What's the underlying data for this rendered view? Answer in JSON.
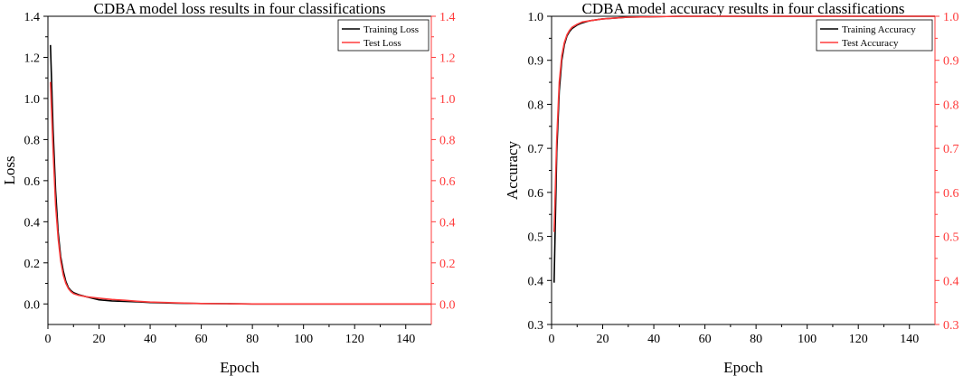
{
  "chart_data": [
    {
      "type": "line",
      "title": "CDBA model loss results in four classifications",
      "xlabel": "Epoch",
      "ylabel": "Loss",
      "y2label": "",
      "xlim": [
        0,
        150
      ],
      "ylim": [
        -0.1,
        1.4
      ],
      "y2lim": [
        -0.1,
        1.4
      ],
      "xticks": [
        "0",
        "20",
        "40",
        "60",
        "80",
        "100",
        "120",
        "140"
      ],
      "yticks": [
        "0.0",
        "0.2",
        "0.4",
        "0.6",
        "0.8",
        "1.0",
        "1.2",
        "1.4"
      ],
      "y2ticks": [
        "0.0",
        "0.2",
        "0.4",
        "0.6",
        "0.8",
        "1.0",
        "1.2",
        "1.4"
      ],
      "grid": false,
      "legend_position": "top-right",
      "colors": {
        "left_axis": "#000000",
        "right_axis": "#ff3b3b"
      },
      "series": [
        {
          "name": "Training Loss",
          "color": "#000000",
          "x": [
            1,
            2,
            3,
            4,
            5,
            6,
            7,
            8,
            9,
            10,
            12,
            15,
            20,
            25,
            30,
            35,
            40,
            50,
            60,
            70,
            80,
            100,
            120,
            150
          ],
          "values": [
            1.26,
            0.85,
            0.55,
            0.35,
            0.23,
            0.16,
            0.11,
            0.08,
            0.065,
            0.055,
            0.045,
            0.035,
            0.02,
            0.015,
            0.012,
            0.01,
            0.007,
            0.004,
            0.002,
            0.001,
            0.0,
            0.0,
            0.0,
            0.0
          ]
        },
        {
          "name": "Test Loss",
          "color": "#ff3b3b",
          "x": [
            1,
            2,
            3,
            4,
            5,
            6,
            7,
            8,
            9,
            10,
            12,
            15,
            20,
            25,
            30,
            35,
            40,
            50,
            60,
            70,
            80,
            100,
            120,
            150
          ],
          "values": [
            1.08,
            0.75,
            0.48,
            0.32,
            0.21,
            0.14,
            0.1,
            0.075,
            0.06,
            0.05,
            0.042,
            0.035,
            0.028,
            0.022,
            0.018,
            0.013,
            0.009,
            0.005,
            0.002,
            0.001,
            0.0,
            0.0,
            0.0,
            0.0
          ]
        }
      ]
    },
    {
      "type": "line",
      "title": "CDBA model accuracy results in four classifications",
      "xlabel": "Epoch",
      "ylabel": "Accuracy",
      "y2label": "",
      "xlim": [
        0,
        150
      ],
      "ylim": [
        0.3,
        1.0
      ],
      "y2lim": [
        0.3,
        1.0
      ],
      "xticks": [
        "0",
        "20",
        "40",
        "60",
        "80",
        "100",
        "120",
        "140"
      ],
      "yticks": [
        "0.3",
        "0.4",
        "0.5",
        "0.6",
        "0.7",
        "0.8",
        "0.9",
        "1.0"
      ],
      "y2ticks": [
        "0.3",
        "0.4",
        "0.5",
        "0.6",
        "0.7",
        "0.8",
        "0.9",
        "1.0"
      ],
      "grid": false,
      "legend_position": "top-right",
      "colors": {
        "left_axis": "#000000",
        "right_axis": "#ff3b3b"
      },
      "series": [
        {
          "name": "Training Accuracy",
          "color": "#000000",
          "x": [
            1,
            2,
            3,
            4,
            5,
            6,
            7,
            8,
            10,
            12,
            15,
            20,
            25,
            30,
            40,
            50,
            60,
            80,
            100,
            120,
            150
          ],
          "values": [
            0.395,
            0.69,
            0.83,
            0.9,
            0.935,
            0.955,
            0.965,
            0.972,
            0.98,
            0.985,
            0.99,
            0.994,
            0.996,
            0.998,
            0.999,
            1.0,
            1.0,
            1.0,
            1.0,
            1.0,
            1.0
          ]
        },
        {
          "name": "Test Accuracy",
          "color": "#ff3b3b",
          "x": [
            1,
            2,
            3,
            4,
            5,
            6,
            7,
            8,
            10,
            12,
            15,
            20,
            25,
            30,
            40,
            50,
            60,
            80,
            100,
            120,
            150
          ],
          "values": [
            0.51,
            0.72,
            0.85,
            0.91,
            0.94,
            0.958,
            0.968,
            0.975,
            0.982,
            0.987,
            0.99,
            0.994,
            0.996,
            0.998,
            0.999,
            1.0,
            1.0,
            1.0,
            1.0,
            1.0,
            1.0
          ]
        }
      ]
    }
  ]
}
